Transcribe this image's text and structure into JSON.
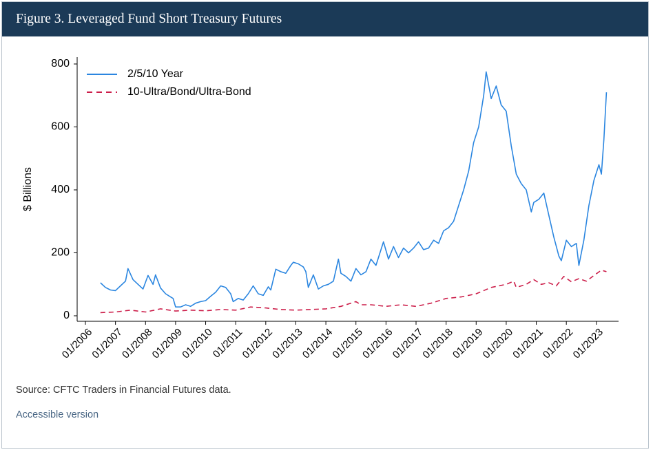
{
  "header": {
    "title": "Figure 3. Leveraged Fund Short Treasury Futures",
    "background": "#1b3a57"
  },
  "footer": {
    "source": "Source: CFTC Traders in Financial Futures data.",
    "accessible_link": "Accessible version",
    "link_color": "#4a6785"
  },
  "chart_data": {
    "type": "line",
    "title": "",
    "xlabel": "",
    "ylabel": "$ Billions",
    "ylim": [
      0,
      800
    ],
    "yticks": [
      0,
      200,
      400,
      600,
      800
    ],
    "xlim": [
      "01/2006",
      "06/2023"
    ],
    "xticks": [
      "01/2006",
      "01/2007",
      "01/2008",
      "01/2009",
      "01/2010",
      "01/2011",
      "01/2012",
      "01/2013",
      "01/2014",
      "01/2015",
      "01/2016",
      "01/2017",
      "01/2018",
      "01/2019",
      "01/2020",
      "01/2021",
      "01/2022",
      "01/2023"
    ],
    "grid": false,
    "legend_position": "top-left",
    "series": [
      {
        "name": "2/5/10 Year",
        "color": "#2b86e0",
        "style": "solid",
        "points": [
          [
            "07/2006",
            105
          ],
          [
            "09/2006",
            90
          ],
          [
            "11/2006",
            82
          ],
          [
            "01/2007",
            80
          ],
          [
            "03/2007",
            95
          ],
          [
            "05/2007",
            110
          ],
          [
            "06/2007",
            150
          ],
          [
            "08/2007",
            115
          ],
          [
            "10/2007",
            100
          ],
          [
            "12/2007",
            85
          ],
          [
            "02/2008",
            128
          ],
          [
            "04/2008",
            100
          ],
          [
            "05/2008",
            130
          ],
          [
            "07/2008",
            88
          ],
          [
            "09/2008",
            70
          ],
          [
            "11/2008",
            60
          ],
          [
            "12/2008",
            55
          ],
          [
            "01/2009",
            28
          ],
          [
            "03/2009",
            28
          ],
          [
            "05/2009",
            35
          ],
          [
            "07/2009",
            30
          ],
          [
            "09/2009",
            40
          ],
          [
            "11/2009",
            45
          ],
          [
            "01/2010",
            48
          ],
          [
            "03/2010",
            62
          ],
          [
            "05/2010",
            75
          ],
          [
            "07/2010",
            95
          ],
          [
            "09/2010",
            90
          ],
          [
            "11/2010",
            70
          ],
          [
            "12/2010",
            45
          ],
          [
            "02/2011",
            55
          ],
          [
            "04/2011",
            50
          ],
          [
            "06/2011",
            70
          ],
          [
            "08/2011",
            95
          ],
          [
            "10/2011",
            70
          ],
          [
            "12/2011",
            65
          ],
          [
            "02/2012",
            92
          ],
          [
            "03/2012",
            82
          ],
          [
            "05/2012",
            148
          ],
          [
            "07/2012",
            140
          ],
          [
            "09/2012",
            135
          ],
          [
            "11/2012",
            160
          ],
          [
            "12/2012",
            170
          ],
          [
            "02/2013",
            165
          ],
          [
            "04/2013",
            155
          ],
          [
            "05/2013",
            140
          ],
          [
            "06/2013",
            90
          ],
          [
            "08/2013",
            130
          ],
          [
            "10/2013",
            85
          ],
          [
            "12/2013",
            95
          ],
          [
            "02/2014",
            100
          ],
          [
            "04/2014",
            110
          ],
          [
            "06/2014",
            180
          ],
          [
            "07/2014",
            135
          ],
          [
            "09/2014",
            125
          ],
          [
            "11/2014",
            110
          ],
          [
            "01/2015",
            150
          ],
          [
            "03/2015",
            130
          ],
          [
            "05/2015",
            140
          ],
          [
            "07/2015",
            180
          ],
          [
            "09/2015",
            160
          ],
          [
            "11/2015",
            210
          ],
          [
            "12/2015",
            235
          ],
          [
            "02/2016",
            180
          ],
          [
            "04/2016",
            220
          ],
          [
            "06/2016",
            185
          ],
          [
            "08/2016",
            215
          ],
          [
            "10/2016",
            200
          ],
          [
            "12/2016",
            215
          ],
          [
            "02/2017",
            235
          ],
          [
            "04/2017",
            210
          ],
          [
            "06/2017",
            215
          ],
          [
            "08/2017",
            240
          ],
          [
            "10/2017",
            230
          ],
          [
            "12/2017",
            270
          ],
          [
            "02/2018",
            280
          ],
          [
            "04/2018",
            300
          ],
          [
            "06/2018",
            350
          ],
          [
            "08/2018",
            400
          ],
          [
            "10/2018",
            460
          ],
          [
            "12/2018",
            550
          ],
          [
            "02/2019",
            600
          ],
          [
            "04/2019",
            700
          ],
          [
            "05/2019",
            775
          ],
          [
            "07/2019",
            690
          ],
          [
            "09/2019",
            730
          ],
          [
            "11/2019",
            670
          ],
          [
            "01/2020",
            650
          ],
          [
            "03/2020",
            540
          ],
          [
            "05/2020",
            450
          ],
          [
            "07/2020",
            420
          ],
          [
            "09/2020",
            400
          ],
          [
            "11/2020",
            330
          ],
          [
            "12/2020",
            360
          ],
          [
            "02/2021",
            370
          ],
          [
            "04/2021",
            390
          ],
          [
            "06/2021",
            320
          ],
          [
            "08/2021",
            250
          ],
          [
            "10/2021",
            190
          ],
          [
            "11/2021",
            175
          ],
          [
            "01/2022",
            240
          ],
          [
            "03/2022",
            220
          ],
          [
            "05/2022",
            230
          ],
          [
            "06/2022",
            160
          ],
          [
            "08/2022",
            240
          ],
          [
            "10/2022",
            350
          ],
          [
            "12/2022",
            430
          ],
          [
            "02/2023",
            480
          ],
          [
            "03/2023",
            450
          ],
          [
            "04/2023",
            560
          ],
          [
            "05/2023",
            710
          ]
        ]
      },
      {
        "name": "10-Ultra/Bond/Ultra-Bond",
        "color": "#cc1e4a",
        "style": "dashed",
        "points": [
          [
            "07/2006",
            10
          ],
          [
            "01/2007",
            12
          ],
          [
            "07/2007",
            18
          ],
          [
            "01/2008",
            12
          ],
          [
            "07/2008",
            22
          ],
          [
            "01/2009",
            15
          ],
          [
            "07/2009",
            18
          ],
          [
            "01/2010",
            16
          ],
          [
            "07/2010",
            20
          ],
          [
            "01/2011",
            18
          ],
          [
            "07/2011",
            28
          ],
          [
            "01/2012",
            25
          ],
          [
            "07/2012",
            20
          ],
          [
            "01/2013",
            18
          ],
          [
            "07/2013",
            20
          ],
          [
            "01/2014",
            22
          ],
          [
            "07/2014",
            30
          ],
          [
            "01/2015",
            45
          ],
          [
            "03/2015",
            35
          ],
          [
            "07/2015",
            35
          ],
          [
            "01/2016",
            30
          ],
          [
            "07/2016",
            35
          ],
          [
            "01/2017",
            30
          ],
          [
            "07/2017",
            40
          ],
          [
            "01/2018",
            55
          ],
          [
            "07/2018",
            60
          ],
          [
            "01/2019",
            70
          ],
          [
            "07/2019",
            90
          ],
          [
            "01/2020",
            100
          ],
          [
            "04/2020",
            110
          ],
          [
            "05/2020",
            90
          ],
          [
            "09/2020",
            100
          ],
          [
            "12/2020",
            115
          ],
          [
            "03/2021",
            100
          ],
          [
            "06/2021",
            105
          ],
          [
            "09/2021",
            95
          ],
          [
            "12/2021",
            125
          ],
          [
            "03/2022",
            108
          ],
          [
            "06/2022",
            118
          ],
          [
            "09/2022",
            110
          ],
          [
            "12/2022",
            128
          ],
          [
            "03/2023",
            145
          ],
          [
            "05/2023",
            140
          ]
        ]
      }
    ]
  }
}
